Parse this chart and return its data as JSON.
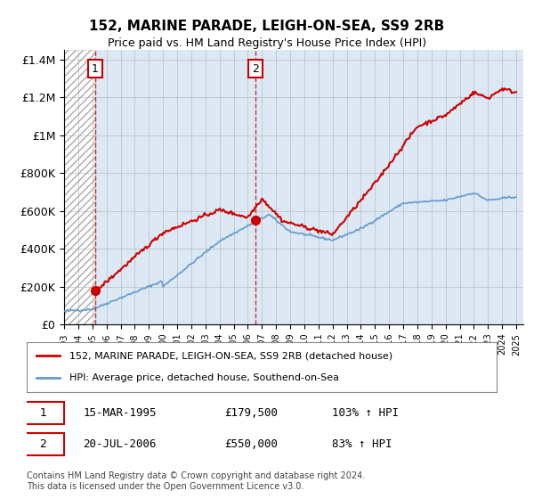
{
  "title": "152, MARINE PARADE, LEIGH-ON-SEA, SS9 2RB",
  "subtitle": "Price paid vs. HM Land Registry's House Price Index (HPI)",
  "legend_line1": "152, MARINE PARADE, LEIGH-ON-SEA, SS9 2RB (detached house)",
  "legend_line2": "HPI: Average price, detached house, Southend-on-Sea",
  "footnote": "Contains HM Land Registry data © Crown copyright and database right 2024.\nThis data is licensed under the Open Government Licence v3.0.",
  "sale1_date": "15-MAR-1995",
  "sale1_price": 179500,
  "sale1_hpi": "103% ↑ HPI",
  "sale2_date": "20-JUL-2006",
  "sale2_price": 550000,
  "sale2_hpi": "83% ↑ HPI",
  "sale1_x": 1995.21,
  "sale2_x": 2006.55,
  "hatch_color": "#cccccc",
  "bg_color": "#dce9f5",
  "plot_bg": "#ffffff",
  "red_line_color": "#cc0000",
  "blue_line_color": "#6699cc",
  "marker_color": "#cc0000",
  "dashed_line_color": "#cc0000",
  "ylim": [
    0,
    1450000
  ],
  "xlim_left": 1993.0,
  "xlim_right": 2025.5
}
